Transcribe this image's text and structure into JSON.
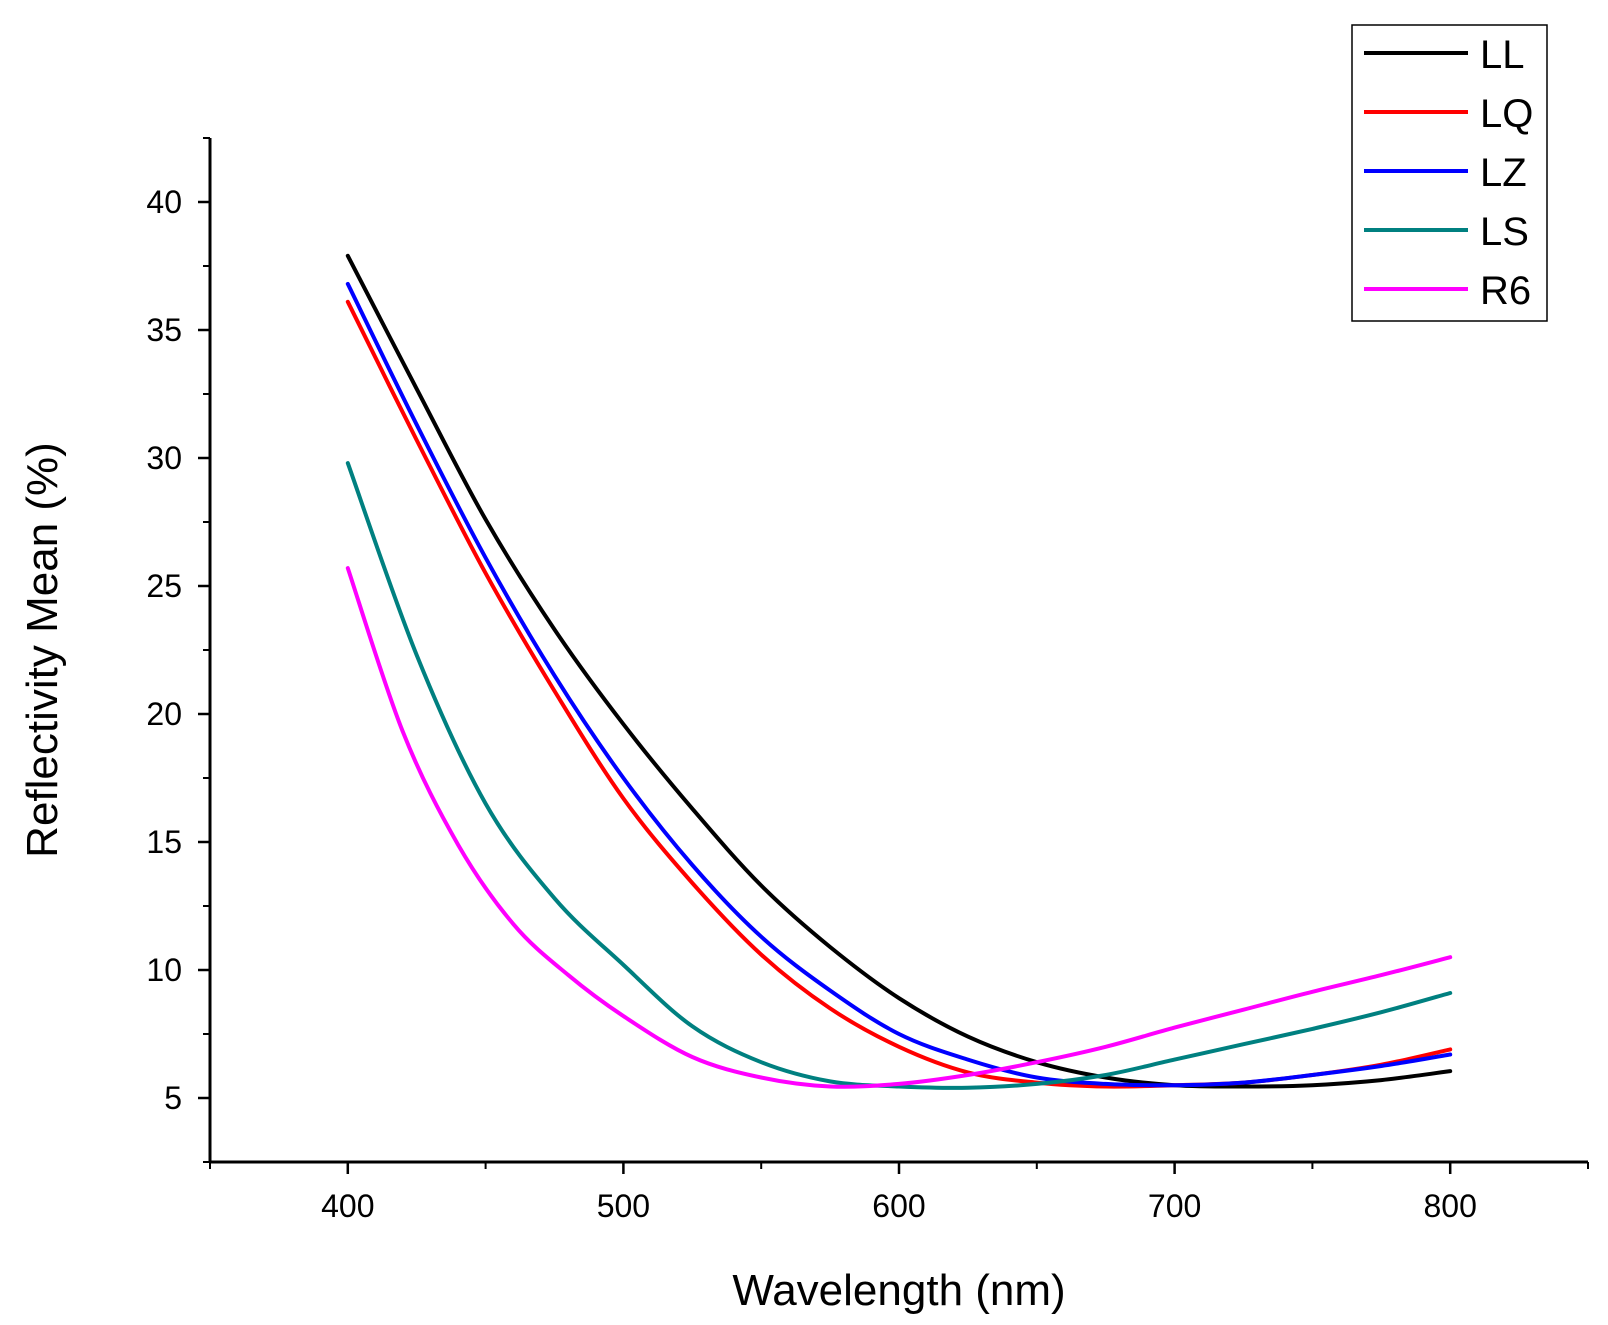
{
  "chart_data": {
    "type": "line",
    "title": "",
    "xlabel": "Wavelength (nm)",
    "ylabel": "Reflectivity Mean (%)",
    "xlim": [
      350,
      850
    ],
    "ylim": [
      2.5,
      42.5
    ],
    "xticks": [
      400,
      500,
      600,
      700,
      800
    ],
    "xticklabels": [
      "400",
      "500",
      "600",
      "700",
      "800"
    ],
    "yticks": [
      5,
      10,
      15,
      20,
      25,
      30,
      35,
      40
    ],
    "yticklabels": [
      "5",
      "10",
      "15",
      "20",
      "25",
      "30",
      "35",
      "40"
    ],
    "grid": false,
    "legend_position": "top-right",
    "series": [
      {
        "name": "LL",
        "color": "#000000",
        "x": [
          400,
          425,
          450,
          475,
          500,
          525,
          550,
          575,
          600,
          625,
          650,
          675,
          700,
          725,
          750,
          775,
          800
        ],
        "y": [
          37.9,
          32.7,
          27.6,
          23.3,
          19.6,
          16.3,
          13.3,
          10.9,
          8.9,
          7.4,
          6.4,
          5.8,
          5.5,
          5.45,
          5.5,
          5.7,
          6.05
        ]
      },
      {
        "name": "LQ",
        "color": "#ff0000",
        "x": [
          400,
          425,
          450,
          475,
          500,
          525,
          550,
          575,
          600,
          625,
          650,
          675,
          700,
          725,
          750,
          775,
          800
        ],
        "y": [
          36.1,
          30.7,
          25.5,
          20.9,
          16.7,
          13.4,
          10.6,
          8.5,
          7.0,
          6.0,
          5.6,
          5.45,
          5.5,
          5.6,
          5.9,
          6.3,
          6.9
        ]
      },
      {
        "name": "LZ",
        "color": "#0000ff",
        "x": [
          400,
          425,
          450,
          475,
          500,
          525,
          550,
          575,
          600,
          625,
          650,
          675,
          700,
          725,
          750,
          775,
          800
        ],
        "y": [
          36.8,
          31.3,
          26.1,
          21.5,
          17.5,
          14.1,
          11.3,
          9.2,
          7.5,
          6.5,
          5.8,
          5.55,
          5.5,
          5.6,
          5.9,
          6.25,
          6.7
        ]
      },
      {
        "name": "LS",
        "color": "#008080",
        "x": [
          400,
          425,
          450,
          475,
          500,
          525,
          550,
          575,
          600,
          625,
          650,
          675,
          700,
          725,
          750,
          775,
          800
        ],
        "y": [
          29.8,
          22.3,
          16.5,
          12.8,
          10.2,
          7.8,
          6.4,
          5.65,
          5.45,
          5.4,
          5.55,
          5.9,
          6.5,
          7.1,
          7.7,
          8.35,
          9.1
        ]
      },
      {
        "name": "R6",
        "color": "#ff00ff",
        "x": [
          400,
          420,
          440,
          460,
          480,
          500,
          525,
          550,
          575,
          600,
          625,
          650,
          675,
          700,
          725,
          750,
          775,
          800
        ],
        "y": [
          25.7,
          19.3,
          14.9,
          11.8,
          9.8,
          8.2,
          6.6,
          5.8,
          5.45,
          5.55,
          5.9,
          6.4,
          7.0,
          7.75,
          8.45,
          9.15,
          9.8,
          10.5
        ]
      }
    ]
  }
}
